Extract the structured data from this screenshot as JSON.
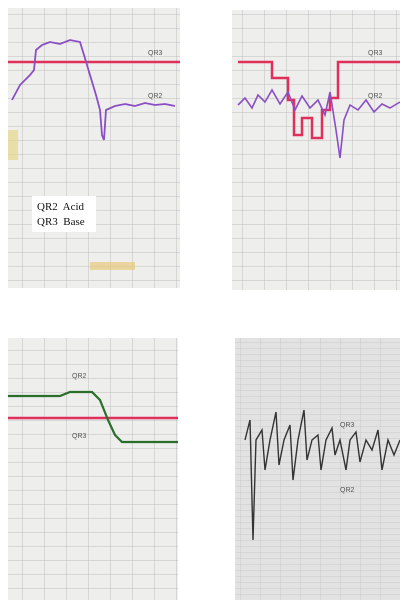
{
  "panels": [
    {
      "labels": [
        "QR3",
        "QR2"
      ],
      "legend": [
        "QR2  Acid",
        "QR3  Base"
      ]
    },
    {
      "labels": [
        "QR3",
        "QR2"
      ]
    },
    {
      "labels": [
        "QR2",
        "QR3"
      ]
    },
    {
      "labels": [
        "QR3",
        "QR2"
      ]
    }
  ]
}
